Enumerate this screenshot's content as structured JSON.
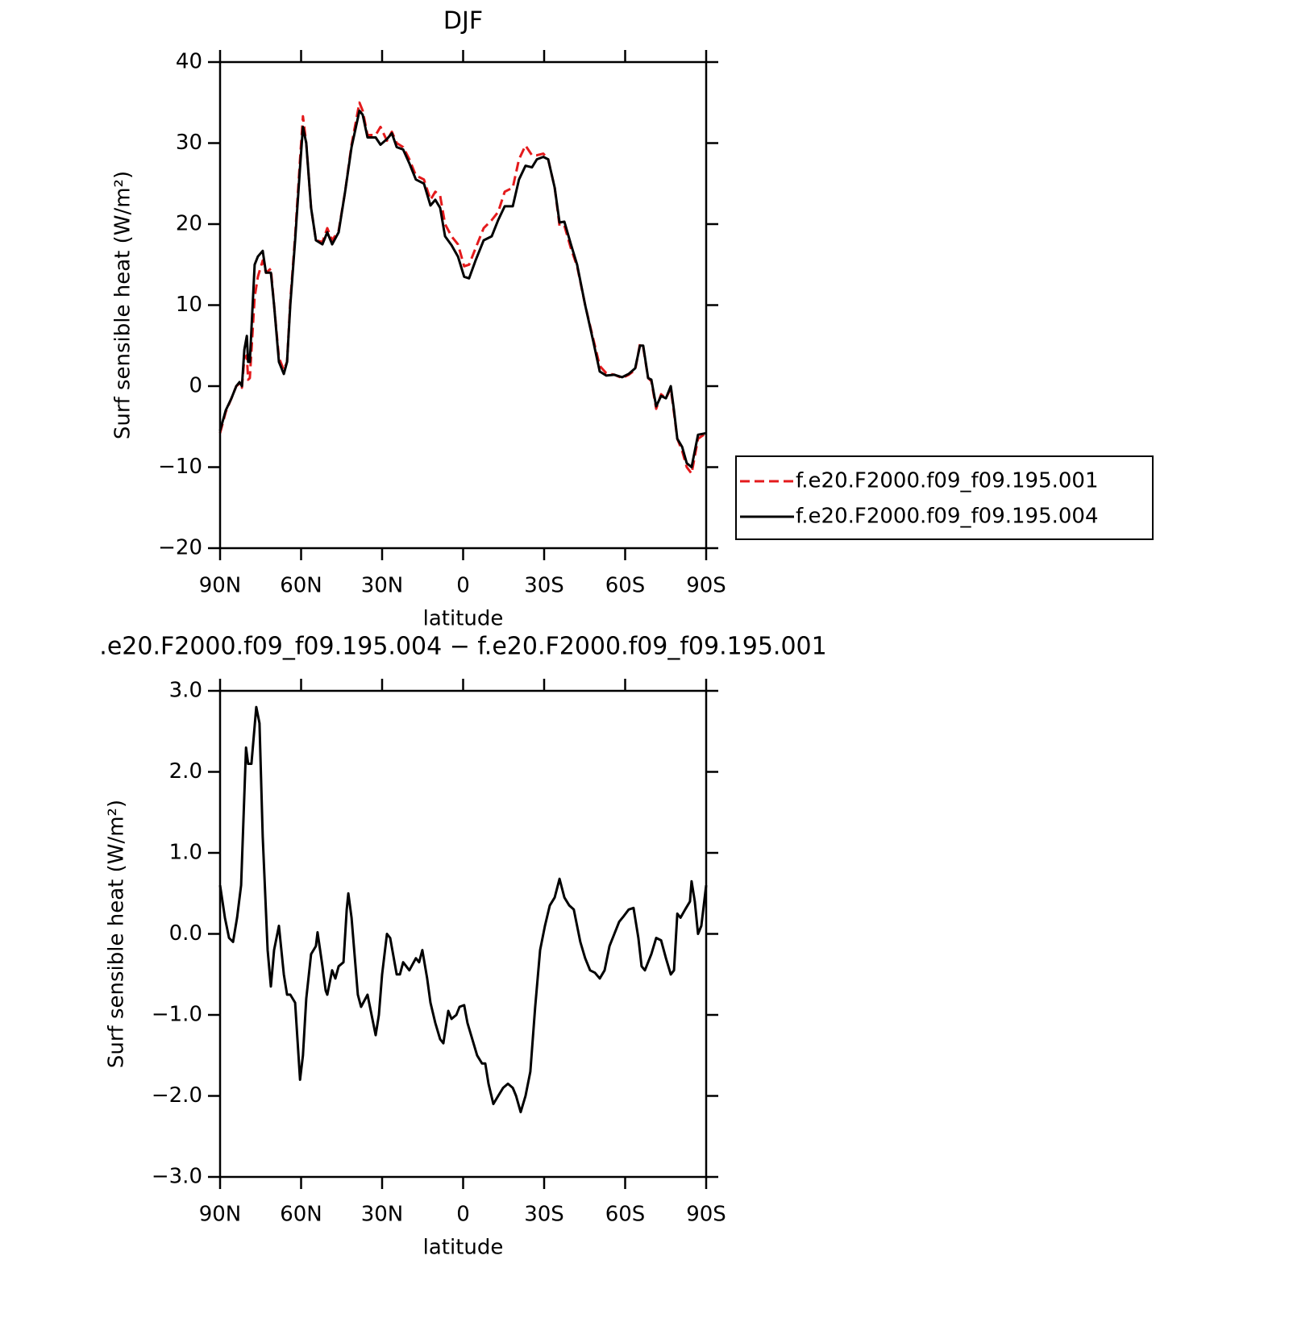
{
  "chart_data": [
    {
      "type": "line",
      "title": "DJF",
      "xlabel": "latitude",
      "ylabel": "Surf sensible heat (W/m²)",
      "x": [
        90,
        87.9,
        85.8,
        84.0,
        82.8,
        81.9,
        81.0,
        80.1,
        79.6,
        79.0,
        77.2,
        76.0,
        74.2,
        73.0,
        71.2,
        70.0,
        68.2,
        66.4,
        65.2,
        64.0,
        62.2,
        60.4,
        59.3,
        58.1,
        56.3,
        54.5,
        52.1,
        50.3,
        48.5,
        46.1,
        43.7,
        41.3,
        38.4,
        37.2,
        35.4,
        32.4,
        30.6,
        28.2,
        26.4,
        24.6,
        22.2,
        19.9,
        17.5,
        14.5,
        12.1,
        10.3,
        8.5,
        6.7,
        4.3,
        1.9,
        -0.4,
        -2.2,
        -4.6,
        -7.6,
        -10.6,
        -13.0,
        -15.4,
        -18.4,
        -20.7,
        -23.1,
        -25.5,
        -27.3,
        -29.7,
        -31.5,
        -33.9,
        -35.7,
        -37.5,
        -39.9,
        -42.2,
        -45.2,
        -48.2,
        -50.6,
        -53.0,
        -56.0,
        -58.9,
        -61.3,
        -63.7,
        -65.5,
        -66.7,
        -68.5,
        -69.7,
        -71.5,
        -73.3,
        -75.1,
        -76.9,
        -78.1,
        -79.3,
        -81.1,
        -82.8,
        -84.6,
        -87.0,
        -90
      ],
      "series": [
        {
          "name": "f.e20.F2000.f09_f09.195.001",
          "color": "#e41a1c",
          "linestyle": "dashed",
          "values": [
            -5.8,
            -3.2,
            -1.5,
            0,
            0.3,
            -0.2,
            3.5,
            3.8,
            0.8,
            1,
            11,
            13.5,
            15.5,
            14,
            14.5,
            10,
            3.5,
            2,
            3,
            10.5,
            18.5,
            28,
            33.3,
            30,
            22,
            18,
            17.8,
            19.5,
            18,
            19.2,
            24,
            29.8,
            35,
            34,
            31,
            31,
            32,
            30.3,
            31.4,
            30,
            29.5,
            28,
            26,
            25.5,
            23,
            24,
            23.5,
            20,
            18.5,
            17.5,
            14.8,
            15,
            17,
            19.5,
            20.5,
            21.5,
            24,
            24.5,
            28,
            29.7,
            28.5,
            28.5,
            28.7,
            28,
            24.5,
            19.8,
            19.8,
            17,
            14.8,
            10,
            5.8,
            2.5,
            1.6,
            1.4,
            1,
            1.4,
            2,
            5.2,
            4.8,
            1,
            0.6,
            -2.8,
            -1,
            -1.5,
            -0.3,
            -3.3,
            -6.5,
            -8,
            -10,
            -10.8,
            -6.5,
            -5.8
          ]
        },
        {
          "name": "f.e20.F2000.f09_f09.195.004",
          "color": "#000000",
          "linestyle": "solid",
          "values": [
            -5.5,
            -3,
            -1.5,
            0,
            0.5,
            0,
            4.5,
            6.2,
            3,
            3,
            15,
            16,
            16.7,
            14,
            14,
            10,
            3,
            1.5,
            3,
            10,
            18,
            27,
            32,
            30,
            22,
            18,
            17.5,
            19,
            17.5,
            19,
            24,
            29.5,
            34,
            33.5,
            30.7,
            30.7,
            29.8,
            30.5,
            31.2,
            29.5,
            29.2,
            27.5,
            25.5,
            25,
            22.3,
            23,
            22,
            18.5,
            17.4,
            16,
            13.5,
            13.3,
            15.5,
            18,
            18.5,
            20.5,
            22.2,
            22.2,
            25.5,
            27.2,
            27,
            28,
            28.3,
            28,
            24.5,
            20.2,
            20.3,
            17.5,
            15,
            10,
            5.5,
            1.8,
            1.3,
            1.4,
            1.1,
            1.5,
            2.2,
            5,
            5,
            1,
            0.8,
            -2.5,
            -1.2,
            -1.5,
            0,
            -3,
            -6.5,
            -7.5,
            -9.5,
            -10,
            -6,
            -5.8
          ]
        }
      ],
      "xlim": [
        90,
        -90
      ],
      "xticks": [
        {
          "value": 90,
          "label": "90N"
        },
        {
          "value": 60,
          "label": "60N"
        },
        {
          "value": 30,
          "label": "30N"
        },
        0,
        {
          "value": -30,
          "label": "30S"
        },
        {
          "value": -60,
          "label": "60S"
        },
        {
          "value": -90,
          "label": "90S"
        }
      ],
      "ylim": [
        -20,
        40
      ],
      "yticks": [
        {
          "value": -20,
          "label": "−20"
        },
        {
          "value": -10,
          "label": "−10"
        },
        0,
        10,
        20,
        30,
        40
      ],
      "legend": "right"
    },
    {
      "type": "line",
      "title": ".e20.F2000.f09_f09.195.004 − f.e20.F2000.f09_f09.195.001",
      "xlabel": "latitude",
      "ylabel": "Surf sensible heat (W/m²)",
      "x": [
        90,
        88.2,
        86.7,
        85.2,
        83.7,
        82.2,
        80.4,
        79.6,
        78.4,
        76.6,
        75.4,
        74.2,
        72.4,
        71.2,
        70.0,
        68.2,
        66.4,
        65.2,
        64.0,
        62.2,
        60.4,
        59.3,
        58.1,
        56.3,
        54.5,
        53.9,
        52.1,
        50.9,
        50.3,
        48.5,
        47.3,
        46.1,
        44.3,
        43.1,
        42.5,
        41.3,
        39.0,
        37.8,
        35.4,
        32.4,
        31.2,
        30.0,
        28.2,
        27.0,
        24.6,
        23.4,
        22.2,
        19.9,
        17.5,
        16.3,
        15.1,
        13.3,
        12.1,
        10.3,
        8.5,
        7.3,
        5.5,
        4.3,
        2.5,
        1.3,
        -0.4,
        -1.6,
        -3.4,
        -5.2,
        -7.0,
        -8.2,
        -9.4,
        -11.2,
        -13.0,
        -14.8,
        -16.6,
        -18.4,
        -19.6,
        -21.3,
        -23.1,
        -24.9,
        -26.7,
        -28.5,
        -30.3,
        -32.1,
        -33.9,
        -35.7,
        -37.5,
        -39.3,
        -41.0,
        -43.4,
        -45.2,
        -47.0,
        -48.8,
        -50.6,
        -52.4,
        -54.2,
        -56.0,
        -57.8,
        -59.5,
        -61.3,
        -63.1,
        -64.9,
        -66.1,
        -67.3,
        -69.7,
        -71.5,
        -73.3,
        -75.1,
        -76.9,
        -78.1,
        -79.3,
        -80.5,
        -82.2,
        -84.0,
        -84.6,
        -85.8,
        -87.0,
        -88.2,
        -90
      ],
      "values": [
        0.6,
        0.2,
        -0.05,
        -0.1,
        0.2,
        0.6,
        2.3,
        2.1,
        2.1,
        2.8,
        2.6,
        1.2,
        -0.2,
        -0.65,
        -0.2,
        0.1,
        -0.5,
        -0.75,
        -0.75,
        -0.85,
        -1.8,
        -1.5,
        -0.8,
        -0.25,
        -0.15,
        0.02,
        -0.4,
        -0.7,
        -0.75,
        -0.45,
        -0.55,
        -0.4,
        -0.35,
        0.3,
        0.5,
        0.2,
        -0.75,
        -0.9,
        -0.75,
        -1.25,
        -1.0,
        -0.5,
        0.0,
        -0.05,
        -0.5,
        -0.5,
        -0.35,
        -0.45,
        -0.3,
        -0.35,
        -0.2,
        -0.55,
        -0.85,
        -1.1,
        -1.3,
        -1.35,
        -0.95,
        -1.05,
        -1.0,
        -0.9,
        -0.88,
        -1.1,
        -1.3,
        -1.5,
        -1.6,
        -1.6,
        -1.85,
        -2.1,
        -2.0,
        -1.9,
        -1.85,
        -1.9,
        -2.0,
        -2.2,
        -2.0,
        -1.7,
        -0.9,
        -0.2,
        0.1,
        0.35,
        0.45,
        0.68,
        0.45,
        0.35,
        0.3,
        -0.1,
        -0.3,
        -0.45,
        -0.48,
        -0.55,
        -0.45,
        -0.15,
        0.0,
        0.15,
        0.22,
        0.3,
        0.32,
        -0.05,
        -0.4,
        -0.45,
        -0.25,
        -0.05,
        -0.08,
        -0.3,
        -0.5,
        -0.45,
        0.25,
        0.2,
        0.3,
        0.4,
        0.65,
        0.4,
        0.0,
        0.1,
        0.6
      ],
      "color": "#000000",
      "linestyle": "solid",
      "xlim": [
        90,
        -90
      ],
      "xticks": [
        {
          "value": 90,
          "label": "90N"
        },
        {
          "value": 60,
          "label": "60N"
        },
        {
          "value": 30,
          "label": "30N"
        },
        0,
        {
          "value": -30,
          "label": "30S"
        },
        {
          "value": -60,
          "label": "60S"
        },
        {
          "value": -90,
          "label": "90S"
        }
      ],
      "ylim": [
        -3,
        3
      ],
      "yticks": [
        {
          "value": -3,
          "label": "−3.0"
        },
        {
          "value": -2,
          "label": "−2.0"
        },
        {
          "value": -1,
          "label": "−1.0"
        },
        {
          "value": 0,
          "label": "0.0"
        },
        {
          "value": 1,
          "label": "1.0"
        },
        {
          "value": 2,
          "label": "2.0"
        },
        {
          "value": 3,
          "label": "3.0"
        }
      ]
    }
  ]
}
